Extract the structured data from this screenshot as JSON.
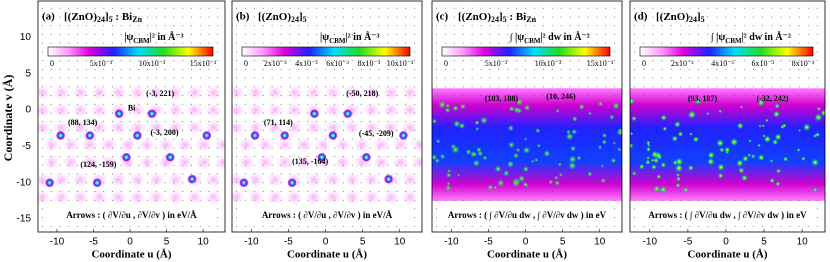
{
  "y_axis": {
    "label": "Coordinate v (Å)",
    "ticks": [
      "10",
      "5",
      "0",
      "-5",
      "-10",
      "-15"
    ]
  },
  "panels": [
    {
      "label": "(a)",
      "title_parts": [
        "[(ZnO)",
        "24",
        "]",
        "5",
        " : Bi",
        "Zn"
      ],
      "colorbar_label_parts": [
        "|ψ",
        "CBM",
        "|² in Å⁻³"
      ],
      "colorbar_ticks": [
        "0",
        "5x10⁻³",
        "10x10⁻³",
        "15x10⁻³"
      ],
      "annotations": [
        "Bi",
        "(-3, 221)",
        "(88, 134)",
        "(-3, 200)",
        "(124, -159)"
      ],
      "arrows_caption": "Arrows : ( ∂V/∂u , ∂V/∂v )  in eV/Å",
      "x_ticks": [
        "-10",
        "-5",
        "0",
        "5",
        "10"
      ],
      "x_label": "Coordinate u (Å)"
    },
    {
      "label": "(b)",
      "title_parts": [
        "[(ZnO)",
        "24",
        "]",
        "5"
      ],
      "colorbar_label_parts": [
        "|ψ",
        "CBM",
        "|² in Å⁻³"
      ],
      "colorbar_ticks": [
        "0",
        "2x10⁻³",
        "4x10⁻³",
        "6x10⁻³",
        "8x10⁻³",
        "10x10⁻³"
      ],
      "annotations": [
        "(-50, 218)",
        "(71, 114)",
        "(-45, -209)",
        "(135, -164)"
      ],
      "arrows_caption": "Arrows : ( ∂V/∂u , ∂V/∂v )  in eV/Å",
      "x_ticks": [
        "-10",
        "-5",
        "0",
        "5",
        "10"
      ],
      "x_label": "Coordinate u (Å)"
    },
    {
      "label": "(c)",
      "title_parts": [
        "[(ZnO)",
        "24",
        "]",
        "5",
        " : Bi",
        "Zn"
      ],
      "colorbar_label_parts": [
        "∫ |ψ",
        "CBM",
        "|² dw  in Å⁻²"
      ],
      "colorbar_ticks": [
        "0",
        "5x10⁻³",
        "10x10⁻³",
        "15x10⁻³"
      ],
      "annotations": [
        "(103, 188)",
        "(10, 246)"
      ],
      "arrows_caption": "Arrows : ( ∫ ∂V/∂u dw , ∫ ∂V/∂v dw )  in eV",
      "x_ticks": [
        "-10",
        "-5",
        "0",
        "5",
        "10"
      ],
      "x_label": "Coordinate u (Å)"
    },
    {
      "label": "(d)",
      "title_parts": [
        "[(ZnO)",
        "24",
        "]",
        "5"
      ],
      "colorbar_label_parts": [
        "∫ |ψ",
        "CBM",
        "|² dw  in Å⁻²"
      ],
      "colorbar_ticks": [
        "0",
        "2x10⁻³",
        "4x10⁻³",
        "6x10⁻³",
        "8x10⁻³"
      ],
      "annotations": [
        "(93, 187)",
        "(-32, 242)"
      ],
      "arrows_caption": "Arrows : ( ∫ ∂V/∂u dw , ∫ ∂V/∂v dw )  in eV",
      "x_ticks": [
        "-10",
        "-5",
        "0",
        "5",
        "10"
      ],
      "x_label": "Coordinate u (Å)"
    }
  ]
}
